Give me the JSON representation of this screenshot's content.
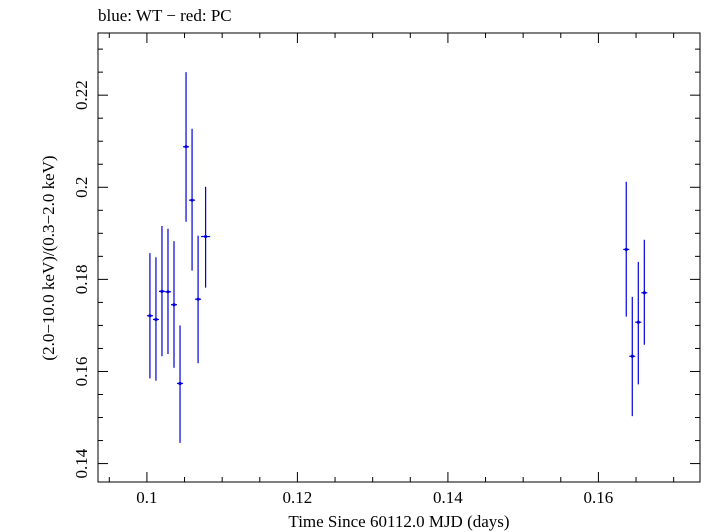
{
  "chart_data": {
    "type": "scatter",
    "title": "blue: WT − red: PC",
    "xlabel": "Time Since 60112.0 MJD (days)",
    "ylabel": "(2.0−10.0 keV)/(0.3−2.0 keV)",
    "xlim": [
      0.0935,
      0.1735
    ],
    "ylim": [
      0.136,
      0.2335
    ],
    "x_ticks": [
      {
        "value": 0.1,
        "label": "0.1"
      },
      {
        "value": 0.12,
        "label": "0.12"
      },
      {
        "value": 0.14,
        "label": "0.14"
      },
      {
        "value": 0.16,
        "label": "0.16"
      }
    ],
    "y_ticks": [
      {
        "value": 0.14,
        "label": "0.14"
      },
      {
        "value": 0.16,
        "label": "0.16"
      },
      {
        "value": 0.18,
        "label": "0.18"
      },
      {
        "value": 0.2,
        "label": "0.2"
      },
      {
        "value": 0.22,
        "label": "0.22"
      }
    ],
    "series": [
      {
        "color": "#0000e0",
        "points": [
          {
            "x": 0.1004,
            "xerr": 0.0004,
            "y": 0.1721,
            "yerr_lo": 0.0136,
            "yerr_hi": 0.0136
          },
          {
            "x": 0.1012,
            "xerr": 0.0004,
            "y": 0.1713,
            "yerr_lo": 0.0133,
            "yerr_hi": 0.0135
          },
          {
            "x": 0.102,
            "xerr": 0.0004,
            "y": 0.1774,
            "yerr_lo": 0.0141,
            "yerr_hi": 0.0142
          },
          {
            "x": 0.1028,
            "xerr": 0.0004,
            "y": 0.1773,
            "yerr_lo": 0.0135,
            "yerr_hi": 0.0137
          },
          {
            "x": 0.1036,
            "xerr": 0.0004,
            "y": 0.1745,
            "yerr_lo": 0.0137,
            "yerr_hi": 0.0138
          },
          {
            "x": 0.1044,
            "xerr": 0.0004,
            "y": 0.1574,
            "yerr_lo": 0.0129,
            "yerr_hi": 0.0126
          },
          {
            "x": 0.1052,
            "xerr": 0.0004,
            "y": 0.2088,
            "yerr_lo": 0.0163,
            "yerr_hi": 0.0162
          },
          {
            "x": 0.106,
            "xerr": 0.0004,
            "y": 0.1972,
            "yerr_lo": 0.0153,
            "yerr_hi": 0.0155
          },
          {
            "x": 0.1068,
            "xerr": 0.0004,
            "y": 0.1757,
            "yerr_lo": 0.0139,
            "yerr_hi": 0.0138
          },
          {
            "x": 0.1078,
            "xerr": 0.0006,
            "y": 0.1893,
            "yerr_lo": 0.0111,
            "yerr_hi": 0.0108
          },
          {
            "x": 0.1637,
            "xerr": 0.0004,
            "y": 0.1865,
            "yerr_lo": 0.0146,
            "yerr_hi": 0.0147
          },
          {
            "x": 0.1645,
            "xerr": 0.0004,
            "y": 0.1633,
            "yerr_lo": 0.013,
            "yerr_hi": 0.0129
          },
          {
            "x": 0.1653,
            "xerr": 0.0004,
            "y": 0.1707,
            "yerr_lo": 0.0135,
            "yerr_hi": 0.0131
          },
          {
            "x": 0.1661,
            "xerr": 0.0004,
            "y": 0.1771,
            "yerr_lo": 0.0113,
            "yerr_hi": 0.0115
          }
        ]
      }
    ],
    "grid": false,
    "legend": "none"
  }
}
